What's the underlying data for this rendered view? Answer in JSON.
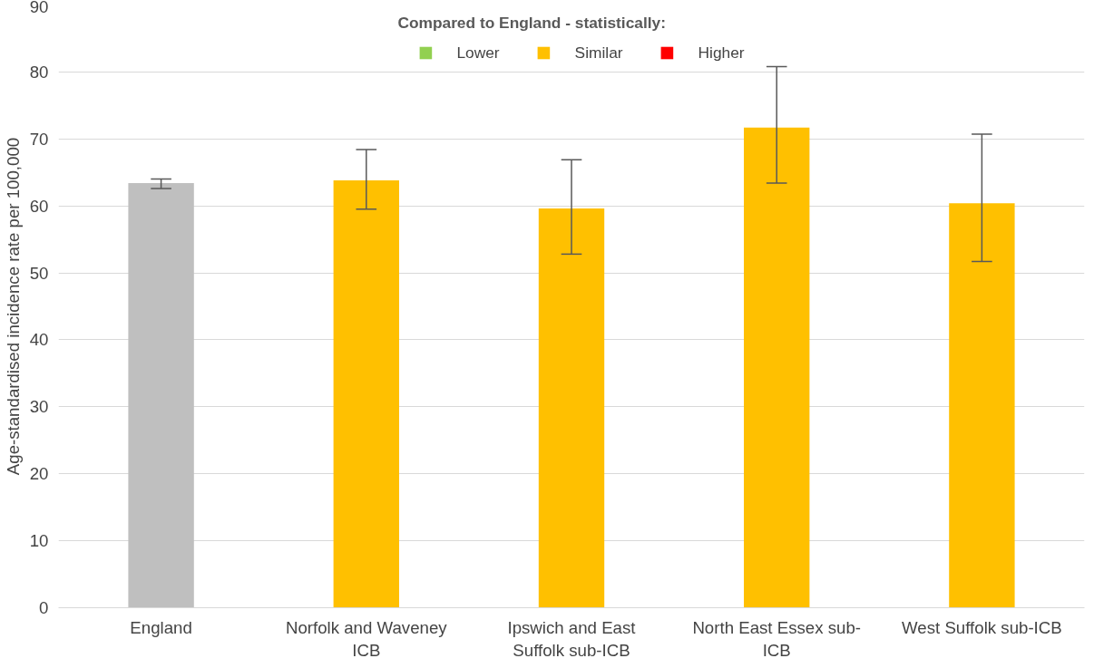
{
  "chart_data": {
    "type": "bar",
    "stacked": true,
    "ylabel": "Age-standardised incidence rate per 100,000",
    "legend_title": "Compared to England - statistically:",
    "categories": [
      "England",
      "Norfolk and Waveney ICB",
      "Ipswich and East Suffolk sub-ICB",
      "North East Essex sub-ICB",
      "West Suffolk sub-ICB"
    ],
    "series": [
      {
        "color": "#bfbfbf",
        "values": [
          63.4,
          null,
          null,
          null,
          null
        ],
        "errors": [
          [
            62.6,
            64.0
          ],
          null,
          null,
          null,
          null
        ]
      },
      {
        "name": "Lower",
        "color": "#92d050",
        "values": [
          null,
          null,
          null,
          null,
          null
        ]
      },
      {
        "name": "Similar",
        "color": "#ffc000",
        "values": [
          null,
          63.8,
          59.6,
          71.7,
          60.4
        ],
        "errors": [
          null,
          [
            59.5,
            68.4
          ],
          [
            52.8,
            66.9
          ],
          [
            63.4,
            80.8
          ],
          [
            51.7,
            70.7
          ]
        ]
      },
      {
        "name": "Higher",
        "color": "#ff0000",
        "values": [
          null,
          null,
          null,
          null,
          null
        ]
      }
    ],
    "ylim": [
      0,
      90
    ],
    "yticks": [
      0,
      10,
      20,
      30,
      40,
      50,
      60,
      70,
      80,
      90
    ],
    "grid": "y",
    "legend": "top"
  }
}
